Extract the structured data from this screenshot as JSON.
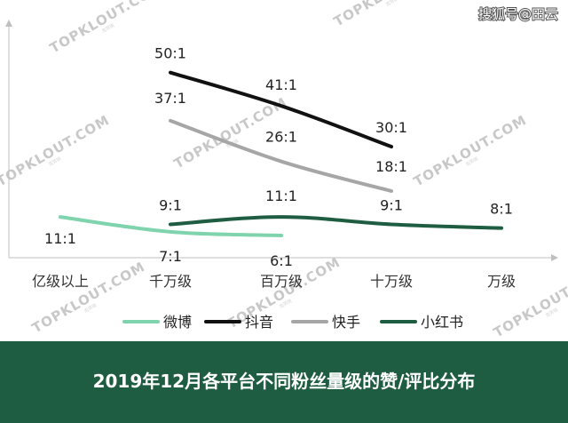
{
  "source_mark": "搜狐号@田云",
  "watermark": {
    "text": "TOPKLOUT.COM",
    "sub": "克劳锐"
  },
  "colors": {
    "weibo": "#7fd3ad",
    "douyin": "#111111",
    "kuaishou": "#a6a6a6",
    "xiaohongshu": "#1f5d42",
    "footer": "#1f5d42",
    "axis": "#bfbfbf"
  },
  "chart_data": {
    "type": "line",
    "title": "2019年12月各平台不同粉丝量级的赞/评比分布",
    "categories": [
      "亿级以上",
      "千万级",
      "百万级",
      "十万级",
      "万级"
    ],
    "ylim": [
      0,
      60
    ],
    "grid": false,
    "legend_position": "bottom",
    "series": [
      {
        "name": "微博",
        "key": "weibo",
        "values": [
          11,
          7,
          6,
          null,
          null
        ],
        "labels": [
          "11:1",
          "7:1",
          "6:1",
          null,
          null
        ]
      },
      {
        "name": "抖音",
        "key": "douyin",
        "values": [
          null,
          50,
          41,
          30,
          null
        ],
        "labels": [
          null,
          "50:1",
          "41:1",
          "30:1",
          null
        ]
      },
      {
        "name": "快手",
        "key": "kuaishou",
        "values": [
          null,
          37,
          26,
          18,
          null
        ],
        "labels": [
          null,
          "37:1",
          "26:1",
          "18:1",
          null
        ]
      },
      {
        "name": "小红书",
        "key": "xiaohongshu",
        "values": [
          null,
          9,
          11,
          9,
          8
        ],
        "labels": [
          null,
          "9:1",
          "11:1",
          "9:1",
          "8:1"
        ]
      }
    ]
  }
}
